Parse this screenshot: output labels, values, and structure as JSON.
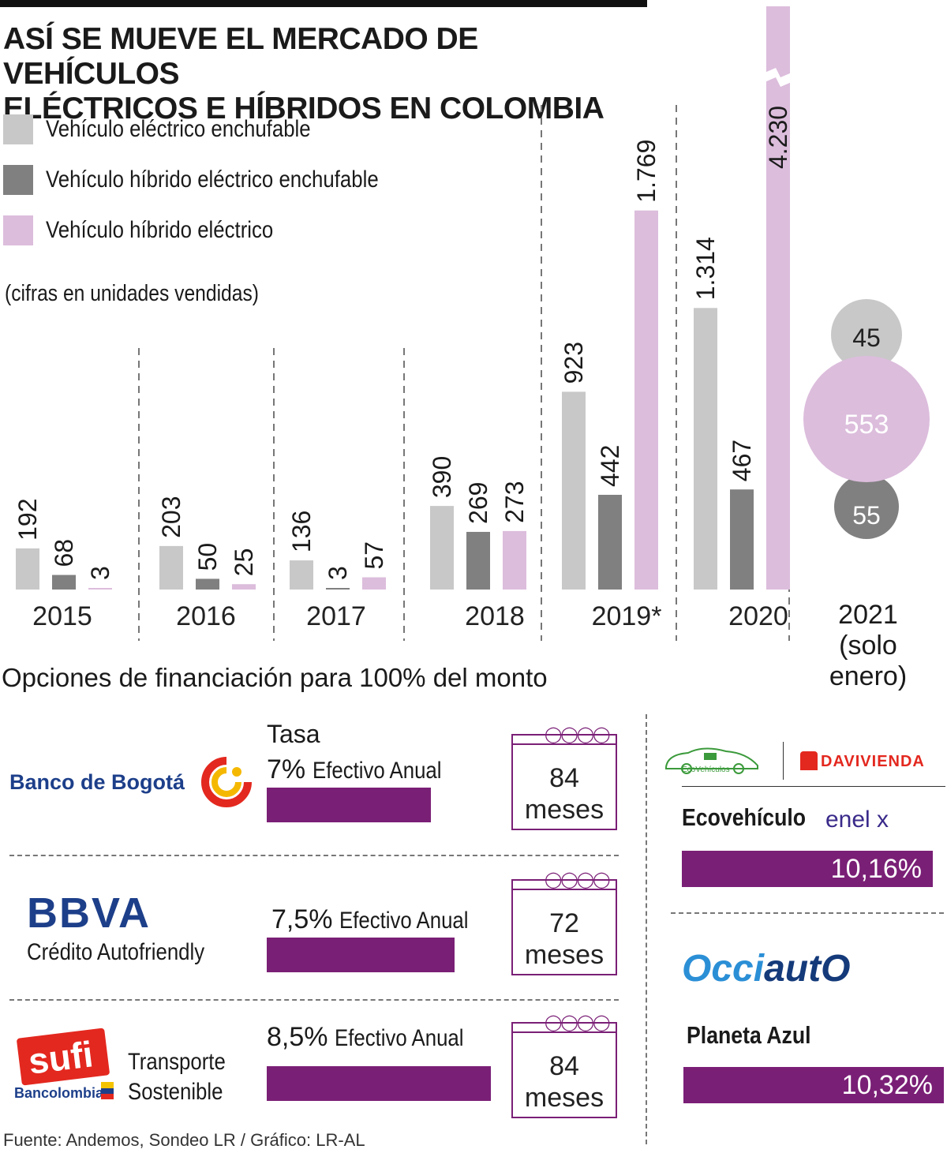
{
  "title_line1": "ASÍ SE MUEVE EL MERCADO DE VEHÍCULOS",
  "title_line2": "ELÉCTRICOS E HÍBRIDOS EN COLOMBIA",
  "unit_note": "(cifras en unidades vendidas)",
  "colors": {
    "electric": "#c8c8c8",
    "phev": "#808080",
    "hybrid": "#dcbddc",
    "accent": "#7a1f76"
  },
  "chart_data": {
    "type": "bar",
    "categories": [
      "2015",
      "2016",
      "2017",
      "2018",
      "2019*",
      "2020"
    ],
    "series": [
      {
        "name": "Vehículo eléctrico enchufable",
        "values": [
          192,
          203,
          136,
          390,
          923,
          1314
        ],
        "labels": [
          "192",
          "203",
          "136",
          "390",
          "923",
          "1.314"
        ]
      },
      {
        "name": "Vehículo híbrido eléctrico enchufable",
        "values": [
          68,
          50,
          3,
          269,
          442,
          467
        ],
        "labels": [
          "68",
          "50",
          "3",
          "269",
          "442",
          "467"
        ]
      },
      {
        "name": "Vehículo híbrido eléctrico",
        "values": [
          3,
          25,
          57,
          273,
          1769,
          4230
        ],
        "labels": [
          "3",
          "25",
          "57",
          "273",
          "1.769",
          "4.230"
        ]
      }
    ],
    "axis_break": "4.230",
    "extra_category": {
      "label_line1": "2021",
      "label_line2": "(solo enero)",
      "electric": "45",
      "hybrid": "553",
      "phev": "55"
    }
  },
  "financing": {
    "title": "Opciones de financiación para 100% del monto",
    "tasa_label": "Tasa",
    "banks": [
      {
        "logo": "Banco de Bogotá",
        "sub": "",
        "rate": "7%",
        "rate_text": "Efectivo Anual",
        "rate_value": 7,
        "months": "84",
        "months_unit": "meses"
      },
      {
        "logo": "BBVA",
        "sub": "Crédito Autofriendly",
        "rate": "7,5%",
        "rate_text": "Efectivo Anual",
        "rate_value": 7.5,
        "months": "72",
        "months_unit": "meses"
      },
      {
        "logo": "sufi",
        "logo_sub": "Bancolombia",
        "sub": "Transporte Sostenible",
        "sub1": "Transporte",
        "sub2": "Sostenible",
        "rate": "8,5%",
        "rate_text": "Efectivo Anual",
        "rate_value": 8.5,
        "months": "84",
        "months_unit": "meses"
      }
    ],
    "right": {
      "ecovehiculos_logo": "EcoVehículos",
      "davivienda_logo": "DAVIVIENDA",
      "eco_name": "Ecovehículo",
      "enel_logo": "enel x",
      "eco_rate": "10,16%",
      "occi_logo_a": "Occi",
      "occi_logo_b": "autO",
      "planeta_name": "Planeta Azul",
      "planeta_rate": "10,32%"
    }
  },
  "source": "Fuente: Andemos, Sondeo LR / Gráfico: LR-AL"
}
